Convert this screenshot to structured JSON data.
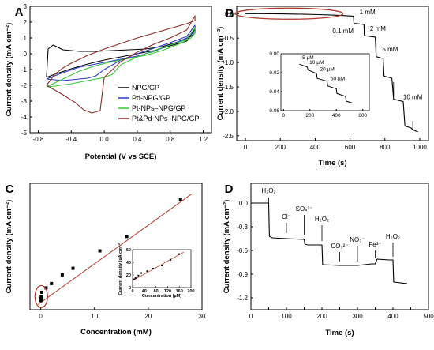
{
  "chart_data": [
    {
      "panel": "A",
      "type": "line",
      "xlabel": "Potential (V vs SCE)",
      "ylabel": "Current density (mA cm⁻²)",
      "xlim": [
        -0.9,
        1.3
      ],
      "ylim": [
        -5,
        3
      ],
      "xticks": [
        "-0.8",
        "-0.4",
        "0.0",
        "0.4",
        "0.8",
        "1.2"
      ],
      "yticks": [
        "-5",
        "-4",
        "-3",
        "-2",
        "-1",
        "0",
        "1",
        "2",
        "3"
      ],
      "legend_position": "bottom-right",
      "series": [
        {
          "name": "NPG/GP",
          "color": "#000000",
          "x": [
            -0.7,
            -0.68,
            -0.62,
            -0.5,
            -0.3,
            -0.1,
            0.1,
            0.3,
            0.5,
            0.7,
            0.9,
            1.05,
            1.1,
            1.1,
            1.0,
            0.8,
            0.6,
            0.4,
            0.2,
            0.0,
            -0.2,
            -0.4,
            -0.6,
            -0.7,
            -0.7
          ],
          "y": [
            -1.5,
            0.3,
            0.55,
            0.25,
            0.15,
            0.15,
            0.2,
            0.25,
            0.3,
            0.45,
            0.75,
            1.1,
            1.3,
            1.55,
            0.8,
            0.5,
            0.2,
            0.0,
            -0.2,
            -0.4,
            -0.65,
            -0.95,
            -1.3,
            -1.5,
            -1.5
          ]
        },
        {
          "name": "Pd-NPG/GP",
          "color": "#2a3bc8",
          "x": [
            -0.7,
            -0.5,
            -0.3,
            -0.15,
            0.0,
            0.2,
            0.4,
            0.6,
            0.8,
            1.0,
            1.1,
            1.1,
            1.0,
            0.8,
            0.6,
            0.4,
            0.2,
            0.0,
            -0.1,
            -0.2,
            -0.3,
            -0.5,
            -0.7
          ],
          "y": [
            -1.6,
            -1.2,
            -0.85,
            -0.7,
            -0.55,
            -0.35,
            -0.15,
            0.15,
            0.55,
            1.0,
            1.4,
            1.8,
            1.1,
            0.7,
            0.35,
            0.0,
            -0.4,
            -1.0,
            -1.4,
            -1.55,
            -1.6,
            -1.7,
            -1.6
          ]
        },
        {
          "name": "Pt-NPs–NPG/GP",
          "color": "#37c837",
          "x": [
            -0.7,
            -0.5,
            -0.3,
            -0.1,
            0.1,
            0.3,
            0.5,
            0.7,
            0.9,
            1.05,
            1.1,
            1.1,
            1.0,
            0.8,
            0.6,
            0.4,
            0.2,
            0.1,
            0.0,
            -0.2,
            -0.4,
            -0.6,
            -0.7
          ],
          "y": [
            -2.1,
            -1.6,
            -1.1,
            -0.75,
            -0.5,
            -0.3,
            -0.1,
            0.2,
            0.6,
            1.0,
            1.3,
            1.65,
            0.9,
            0.55,
            0.2,
            -0.2,
            -0.7,
            -1.3,
            -1.5,
            -1.7,
            -1.9,
            -2.05,
            -2.1
          ]
        },
        {
          "name": "Pt&Pd-NPs–NPG/GP",
          "color": "#8e2b2b",
          "x": [
            -0.7,
            -0.6,
            -0.5,
            -0.4,
            -0.2,
            0.0,
            0.2,
            0.4,
            0.6,
            0.8,
            1.0,
            1.1,
            1.1,
            1.0,
            0.8,
            0.6,
            0.4,
            0.2,
            0.0,
            -0.05,
            -0.15,
            -0.25,
            -0.35,
            -0.5,
            -0.6,
            -0.7
          ],
          "y": [
            -2.0,
            -1.3,
            -0.9,
            -0.6,
            -0.1,
            0.3,
            0.65,
            1.0,
            1.3,
            1.6,
            1.9,
            2.1,
            2.4,
            1.5,
            1.0,
            0.6,
            0.1,
            -0.5,
            -1.5,
            -3.6,
            -3.75,
            -3.55,
            -3.1,
            -2.6,
            -2.3,
            -2.0
          ]
        }
      ]
    },
    {
      "panel": "B",
      "type": "line",
      "xlabel": "Time (s)",
      "ylabel": "Current density (mA cm⁻²)",
      "xlim": [
        -50,
        1050
      ],
      "ylim": [
        -2.6,
        0.15
      ],
      "xticks": [
        "0",
        "200",
        "400",
        "600",
        "800",
        "1000"
      ],
      "yticks": [
        "0.0",
        "-0.5",
        "-1.0",
        "-1.5",
        "-2.0",
        "-2.5"
      ],
      "series": [
        {
          "name": "",
          "color": "#000000",
          "x": [
            0,
            100,
            200,
            300,
            420,
            500,
            560,
            620,
            622,
            680,
            682,
            745,
            750,
            790,
            795,
            840,
            850,
            905,
            915,
            950,
            960,
            990
          ],
          "y": [
            0,
            0,
            -0.005,
            -0.01,
            -0.02,
            -0.03,
            -0.04,
            -0.05,
            -0.2,
            -0.22,
            -0.45,
            -0.48,
            -0.88,
            -0.92,
            -1.28,
            -1.32,
            -1.75,
            -1.8,
            -2.3,
            -2.34,
            -2.38,
            -2.42
          ]
        }
      ],
      "annotations": [
        "1 mM",
        "0.1 mM",
        "2 mM",
        "5 mM",
        "10 mM"
      ],
      "inset": {
        "type": "line",
        "xlim": [
          -20,
          650
        ],
        "ylim": [
          0.06,
          0
        ],
        "xticks": [
          "0",
          "200",
          "400",
          "600"
        ],
        "yticks": [
          "0.00",
          "0.02",
          "0.04",
          "0.06"
        ],
        "x": [
          120,
          180,
          185,
          250,
          255,
          330,
          335,
          400,
          405,
          470,
          475,
          520
        ],
        "y": [
          0.011,
          0.014,
          0.017,
          0.021,
          0.026,
          0.029,
          0.034,
          0.037,
          0.042,
          0.045,
          0.05,
          0.052
        ],
        "annotations": [
          "5 µM",
          "10 µM",
          "20 µM",
          "50 µM"
        ]
      }
    },
    {
      "panel": "C",
      "type": "scatter",
      "xlabel": "Concentration (mM)",
      "ylabel": "Current density (mA cm⁻²)",
      "xlim": [
        -2,
        30
      ],
      "ylim": [
        -0.2,
        2.7
      ],
      "xticks": [
        "0",
        "10",
        "20",
        "30"
      ],
      "yticks": [],
      "x": [
        0.005,
        0.01,
        0.02,
        0.05,
        0.1,
        0.2,
        1,
        2,
        4,
        6,
        11,
        16,
        26
      ],
      "y": [
        0.01,
        0.02,
        0.03,
        0.05,
        0.1,
        0.2,
        0.3,
        0.4,
        0.6,
        0.75,
        1.15,
        1.48,
        2.33
      ],
      "fit": {
        "x": [
          -0.5,
          28
        ],
        "y": [
          -0.08,
          2.45
        ],
        "color": "#b03a2a"
      },
      "inset": {
        "type": "scatter",
        "xlabel": "Concentration (µM)",
        "ylabel": "Current density (µA cm⁻²)",
        "xlim": [
          0,
          200
        ],
        "ylim": [
          0,
          60
        ],
        "xticks": [
          "0",
          "40",
          "80",
          "120",
          "160",
          "200"
        ],
        "yticks": [
          "0",
          "20",
          "40",
          "60"
        ],
        "x": [
          5,
          10,
          20,
          30,
          50,
          70,
          100,
          130,
          160
        ],
        "y": [
          13,
          15,
          19,
          23,
          26,
          30,
          35,
          44,
          53
        ]
      }
    },
    {
      "panel": "D",
      "type": "line",
      "xlabel": "Time (s)",
      "ylabel": "Current density (mA cm⁻²)",
      "xlim": [
        0,
        500
      ],
      "ylim": [
        -1.35,
        0.25
      ],
      "xticks": [
        "0",
        "50",
        "100",
        "150",
        "200",
        "250",
        "300",
        "350",
        "400",
        "450",
        "500"
      ],
      "yticks": [
        "0.0",
        "-0.3",
        "-0.6",
        "-0.9",
        "-1.2"
      ],
      "series": [
        {
          "name": "",
          "color": "#000000",
          "x": [
            0,
            50,
            52,
            60,
            100,
            150,
            152,
            160,
            195,
            200,
            202,
            250,
            300,
            340,
            350,
            355,
            390,
            400,
            402,
            440
          ],
          "y": [
            0,
            0,
            -0.42,
            -0.44,
            -0.45,
            -0.46,
            -0.52,
            -0.53,
            -0.53,
            -0.53,
            -0.78,
            -0.79,
            -0.79,
            -0.77,
            -0.77,
            -0.71,
            -0.72,
            -0.72,
            -1.0,
            -1.02
          ]
        }
      ],
      "annotations": [
        "H₂O₂",
        "Cl⁻",
        "SO₄²⁻",
        "H₂O₂",
        "CO₃²⁻",
        "NO₃⁻",
        "Fe³⁺",
        "H₂O₂"
      ]
    }
  ]
}
